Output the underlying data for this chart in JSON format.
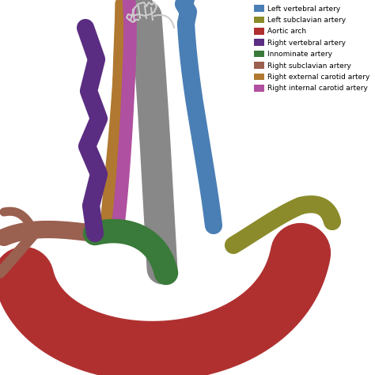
{
  "legend_items": [
    {
      "label": "Left vertebral artery",
      "color": "#4a7fb5"
    },
    {
      "label": "Left subclavian artery",
      "color": "#8b8b2b"
    },
    {
      "label": "Aortic arch",
      "color": "#b03030"
    },
    {
      "label": "Right vertebral artery",
      "color": "#5a2d82"
    },
    {
      "label": "Innominate artery",
      "color": "#3a7a3a"
    },
    {
      "label": "Right subclavian artery",
      "color": "#9a6050"
    },
    {
      "label": "Right external carotid artery",
      "color": "#b07830"
    },
    {
      "label": "Right internal carotid artery",
      "color": "#b050a0"
    }
  ],
  "bg_color": "#ffffff",
  "carotid_color": "#888888",
  "left_vertebral_color": "#4a7fb5",
  "left_subclavian_color": "#8b8b2b",
  "aortic_arch_color": "#b03030",
  "right_vertebral_color": "#5a2d82",
  "innominate_color": "#3a7a3a",
  "right_subclavian_color": "#9a6050",
  "right_ext_carotid_color": "#b07830",
  "right_int_carotid_color": "#b050a0"
}
